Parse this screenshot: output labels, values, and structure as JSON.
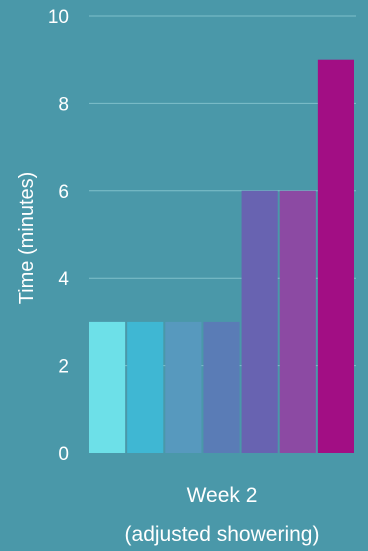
{
  "chart_data": {
    "type": "bar",
    "ylabel": "Time (minutes)",
    "xlabel_lines": [
      "Week 2",
      "(adjusted showering)"
    ],
    "ylim": [
      0,
      10
    ],
    "yticks": [
      0,
      2,
      4,
      6,
      8,
      10
    ],
    "grid": true,
    "values": [
      3,
      3,
      3,
      3,
      6,
      6,
      9
    ],
    "colors": [
      "#6de0e8",
      "#3fb7d3",
      "#5799be",
      "#5a7cb6",
      "#6863b1",
      "#8c4aa3",
      "#a20e84"
    ]
  },
  "style": {
    "background": "#4a98a9",
    "grid_color": "#7fbfcb",
    "text_color": "#ffffff"
  }
}
